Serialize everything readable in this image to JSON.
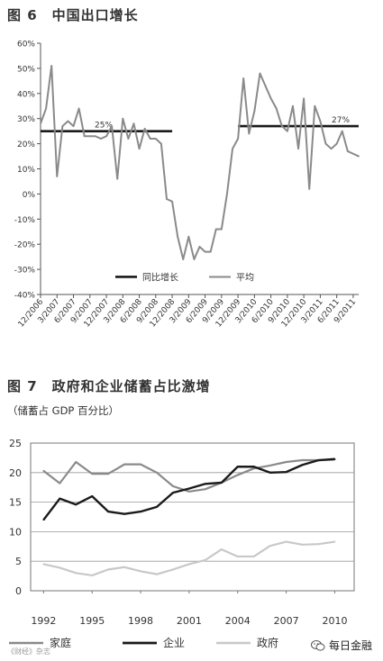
{
  "figure1": {
    "title": "图 6　中国出口增长",
    "watermark_text": ""
  },
  "figure2": {
    "title": "图 7　政府和企业储蓄占比激增",
    "subtitle": "（储蓄占 GDP 百分比）"
  },
  "footer": {
    "left_text": "《财经》杂志",
    "right_text": "每日金融"
  },
  "colors": {
    "dark_line": "#1a1a1a",
    "mid_line": "#8a8a8a",
    "light_line": "#c8c8c8",
    "text": "#333333"
  },
  "chart_data": [
    {
      "type": "line",
      "title": "中国出口增长",
      "ylim": [
        -40,
        60
      ],
      "yticks": [
        "60%",
        "50%",
        "40%",
        "30%",
        "20%",
        "10%",
        "0%",
        "-10%",
        "-20%",
        "-30%",
        "-40%"
      ],
      "xticks": [
        "12/2006",
        "3/2007",
        "6/2007",
        "9/2007",
        "12/2007",
        "3/2008",
        "6/2008",
        "9/2008",
        "12/2008",
        "3/2009",
        "6/2009",
        "9/2009",
        "12/2009",
        "3/2010",
        "6/2010",
        "9/2010",
        "12/2010",
        "3/2011",
        "6/2011",
        "9/2011"
      ],
      "grid": false,
      "legend_position": "bottom-center",
      "annotations": [
        {
          "text": "25%",
          "x_from": 0,
          "x_to": 24,
          "y": 25
        },
        {
          "text": "27%",
          "x_from": 36,
          "x_to": 58,
          "y": 27
        }
      ],
      "series": [
        {
          "name": "同比增长",
          "style": "gray",
          "x": [
            0,
            1,
            2,
            3,
            4,
            5,
            6,
            7,
            8,
            9,
            10,
            11,
            12,
            13,
            14,
            15,
            16,
            17,
            18,
            19,
            20,
            21,
            22,
            23,
            24,
            25,
            26,
            27,
            28,
            29,
            30,
            31,
            32,
            33,
            34,
            35,
            36,
            37,
            38,
            39,
            40,
            41,
            42,
            43,
            44,
            45,
            46,
            47,
            48,
            49,
            50,
            51,
            52,
            53,
            54,
            55,
            56,
            57,
            58
          ],
          "values": [
            28,
            34,
            51,
            7,
            27,
            29,
            27,
            34,
            23,
            23,
            23,
            22,
            23,
            27,
            6,
            30,
            22,
            28,
            18,
            26,
            22,
            22,
            20,
            -2,
            -3,
            -17,
            -26,
            -17,
            -26,
            -21,
            -23,
            -23,
            -14,
            -14,
            0,
            18,
            22,
            46,
            24,
            33,
            48,
            43,
            38,
            34,
            27,
            25,
            35,
            18,
            38,
            2,
            35,
            29,
            20,
            18,
            20,
            25,
            17,
            16,
            15
          ],
          "values_note": ""
        },
        {
          "name": "平均",
          "style": "black"
        }
      ]
    },
    {
      "type": "line",
      "title": "政府和企业储蓄占比激增",
      "ylabel": "（储蓄占 GDP 百分比）",
      "ylim": [
        0,
        25
      ],
      "yticks": [
        0,
        5,
        10,
        15,
        20,
        25
      ],
      "xticks": [
        "1992",
        "1995",
        "1998",
        "2001",
        "2004",
        "2007",
        "2010"
      ],
      "grid": true,
      "legend_position": "bottom",
      "series": [
        {
          "name": "家庭",
          "style": "gray",
          "x": [
            1992,
            1993,
            1994,
            1995,
            1996,
            1997,
            1998,
            1999,
            2000,
            2001,
            2002,
            2003,
            2004,
            2005,
            2006,
            2007,
            2008,
            2009,
            2010
          ],
          "values": [
            20.3,
            18.2,
            21.8,
            19.8,
            19.8,
            21.4,
            21.4,
            20.0,
            17.7,
            16.8,
            17.2,
            18.3,
            19.6,
            20.7,
            21.2,
            21.8,
            22.1,
            22.1,
            22.2
          ]
        },
        {
          "name": "企业",
          "style": "black",
          "x": [
            1992,
            1993,
            1994,
            1995,
            1996,
            1997,
            1998,
            1999,
            2000,
            2001,
            2002,
            2003,
            2004,
            2005,
            2006,
            2007,
            2008,
            2009,
            2010
          ],
          "values": [
            12.0,
            15.6,
            14.6,
            16.0,
            13.4,
            13.0,
            13.4,
            14.2,
            16.6,
            17.3,
            18.1,
            18.3,
            21.0,
            21.0,
            20.0,
            20.1,
            21.3,
            22.1,
            22.3
          ]
        },
        {
          "name": "政府",
          "style": "light",
          "x": [
            1992,
            1993,
            1994,
            1995,
            1996,
            1997,
            1998,
            1999,
            2000,
            2001,
            2002,
            2003,
            2004,
            2005,
            2006,
            2007,
            2008,
            2009,
            2010
          ],
          "values": [
            4.5,
            3.9,
            3.0,
            2.6,
            3.6,
            4.0,
            3.3,
            2.8,
            3.6,
            4.5,
            5.2,
            7.0,
            5.8,
            5.8,
            7.6,
            8.3,
            7.8,
            7.9,
            8.3
          ]
        }
      ]
    }
  ]
}
